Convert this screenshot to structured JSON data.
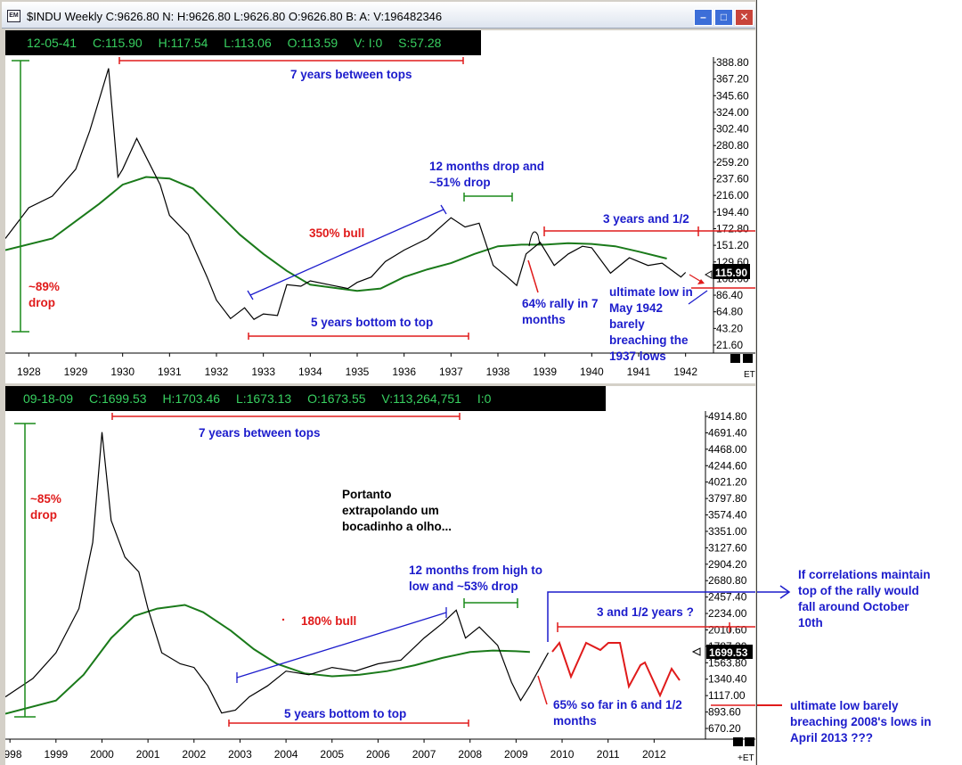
{
  "window": {
    "title": "$INDU Weekly C:9626.80 N: H:9626.80 L:9626.80 O:9626.80 B: A: V:196482346",
    "icon_label": "EM"
  },
  "top": {
    "info": {
      "date": "12-05-41",
      "close": "C:115.90",
      "high": "H:117.54",
      "low": "L:113.06",
      "open": "O:113.59",
      "vol": "V: I:0",
      "s": "S:57.28"
    },
    "price_ticks": [
      "388.80",
      "367.20",
      "345.60",
      "324.00",
      "302.40",
      "280.80",
      "259.20",
      "237.60",
      "216.00",
      "194.40",
      "172.80",
      "151.20",
      "129.60",
      "108.00",
      "86.40",
      "64.80",
      "43.20",
      "21.60"
    ],
    "years": [
      "1928",
      "1929",
      "1930",
      "1931",
      "1932",
      "1933",
      "1934",
      "1935",
      "1936",
      "1937",
      "1938",
      "1939",
      "1940",
      "1941",
      "1942"
    ],
    "last_price": "115.90",
    "et_label": "ET",
    "annotations": {
      "tops": "7 years between tops",
      "drop_12m_1": "12 months drop and",
      "drop_12m_2": "~51% drop",
      "three_years": "3 years and 1/2",
      "bull": "350% bull",
      "drop89_1": "~89%",
      "drop89_2": "drop",
      "bottom_top": "5 years bottom to top",
      "rally_1": "64% rally in 7",
      "rally_2": "months",
      "ult_1": "ultimate low in",
      "ult_2": "May 1942",
      "ult_3": "barely",
      "ult_4": "breaching the",
      "ult_5": "1937 lows"
    }
  },
  "bottom": {
    "info": {
      "date": "09-18-09",
      "close": "C:1699.53",
      "high": "H:1703.46",
      "low": "L:1673.13",
      "open": "O:1673.55",
      "vol": "V:113,264,751",
      "i": "I:0"
    },
    "price_ticks": [
      "4914.80",
      "4691.40",
      "4468.00",
      "4244.60",
      "4021.20",
      "3797.80",
      "3574.40",
      "3351.00",
      "3127.60",
      "2904.20",
      "2680.80",
      "2457.40",
      "2234.00",
      "2010.60",
      "1787.20",
      "1563.80",
      "1340.40",
      "1117.00",
      "893.60",
      "670.20"
    ],
    "years": [
      "1998",
      "1999",
      "2000",
      "2001",
      "2002",
      "2003",
      "2004",
      "2005",
      "2006",
      "2007",
      "2008",
      "2009",
      "2010",
      "2011",
      "2012"
    ],
    "last_price": "1699.53",
    "et_label": "+ET",
    "annotations": {
      "tops": "7 years between tops",
      "drop85_1": "~85%",
      "drop85_2": "drop",
      "portanto_1": "Portanto",
      "portanto_2": "extrapolando um",
      "portanto_3": "bocadinho a olho...",
      "high_low_1": "12 months from high to",
      "high_low_2": "low and ~53% drop",
      "bull": "180% bull",
      "three_half": "3 and 1/2 years  ?",
      "bottom_top": "5 years bottom to top",
      "sofar_1": "65% so far in 6 and 1/2",
      "sofar_2": "months"
    }
  },
  "side_notes": {
    "corr_1": "If correlations maintain",
    "corr_2": "top of the rally would",
    "corr_3": "fall around October",
    "corr_4": "10th",
    "ult_1": "ultimate low barely",
    "ult_2": "breaching 2008's lows in",
    "ult_3": "April 2013 ???"
  },
  "colors": {
    "price": "#000000",
    "ma": "#1a7a1a",
    "red": "#e01b1b",
    "blue": "#1c1ccc",
    "green_ann": "#1a8a1a",
    "info_text": "#38d060"
  },
  "chart_data": [
    {
      "type": "line",
      "title": "$INDU Weekly",
      "x_range": [
        1927.5,
        1942.5
      ],
      "ylim": [
        21.6,
        388.8
      ],
      "y_ticks": [
        388.8,
        367.2,
        345.6,
        324.0,
        302.4,
        280.8,
        259.2,
        237.6,
        216.0,
        194.4,
        172.8,
        151.2,
        129.6,
        108.0,
        86.4,
        64.8,
        43.2,
        21.6
      ],
      "series": [
        {
          "points": [
            [
              1927.5,
              160
            ],
            [
              1928.0,
              200
            ],
            [
              1928.5,
              215
            ],
            [
              1929.0,
              250
            ],
            [
              1929.3,
              300
            ],
            [
              1929.7,
              381
            ],
            [
              1929.9,
              240
            ],
            [
              1930.0,
              250
            ],
            [
              1930.3,
              290
            ],
            [
              1930.8,
              230
            ],
            [
              1931.0,
              190
            ],
            [
              1931.4,
              165
            ],
            [
              1931.8,
              110
            ],
            [
              1932.0,
              80
            ],
            [
              1932.3,
              56
            ],
            [
              1932.6,
              70
            ],
            [
              1932.8,
              55
            ],
            [
              1933.0,
              62
            ],
            [
              1933.3,
              60
            ],
            [
              1933.5,
              100
            ],
            [
              1933.8,
              98
            ],
            [
              1934.0,
              105
            ],
            [
              1934.4,
              100
            ],
            [
              1934.8,
              95
            ],
            [
              1935.0,
              103
            ],
            [
              1935.3,
              110
            ],
            [
              1935.6,
              130
            ],
            [
              1936.0,
              145
            ],
            [
              1936.5,
              160
            ],
            [
              1937.0,
              187
            ],
            [
              1937.3,
              175
            ],
            [
              1937.6,
              180
            ],
            [
              1937.9,
              125
            ],
            [
              1938.2,
              110
            ],
            [
              1938.4,
              99
            ],
            [
              1938.6,
              140
            ],
            [
              1938.9,
              155
            ],
            [
              1939.2,
              125
            ],
            [
              1939.5,
              140
            ],
            [
              1939.8,
              150
            ],
            [
              1940.0,
              148
            ],
            [
              1940.4,
              115
            ],
            [
              1940.8,
              135
            ],
            [
              1941.2,
              125
            ],
            [
              1941.5,
              128
            ],
            [
              1941.9,
              110
            ],
            [
              1942.0,
              116
            ]
          ]
        },
        {
          "points": [
            [
              1927.5,
              145
            ],
            [
              1928.5,
              160
            ],
            [
              1929.5,
              205
            ],
            [
              1930.0,
              230
            ],
            [
              1930.5,
              240
            ],
            [
              1931.0,
              238
            ],
            [
              1931.5,
              225
            ],
            [
              1932.0,
              195
            ],
            [
              1932.5,
              165
            ],
            [
              1933.0,
              140
            ],
            [
              1933.5,
              118
            ],
            [
              1934.0,
              100
            ],
            [
              1935.0,
              92
            ],
            [
              1935.5,
              95
            ],
            [
              1936.0,
              110
            ],
            [
              1936.5,
              120
            ],
            [
              1937.0,
              128
            ],
            [
              1937.5,
              140
            ],
            [
              1938.0,
              150
            ],
            [
              1938.5,
              152
            ],
            [
              1939.0,
              152
            ],
            [
              1939.5,
              154
            ],
            [
              1940.0,
              153
            ],
            [
              1940.5,
              150
            ],
            [
              1941.0,
              143
            ],
            [
              1941.6,
              134
            ]
          ]
        }
      ]
    },
    {
      "type": "line",
      "title": "$INDU Weekly",
      "x_range": [
        1997.9,
        2013.0
      ],
      "ylim": [
        670.2,
        4914.8
      ],
      "y_ticks": [
        4914.8,
        4691.4,
        4468.0,
        4244.6,
        4021.2,
        3797.8,
        3574.4,
        3351.0,
        3127.6,
        2904.2,
        2680.8,
        2457.4,
        2234.0,
        2010.6,
        1787.2,
        1563.8,
        1340.4,
        1117.0,
        893.6,
        670.2
      ],
      "series": [
        {
          "points": [
            [
              1997.9,
              1100
            ],
            [
              1998.5,
              1350
            ],
            [
              1999.0,
              1700
            ],
            [
              1999.5,
              2300
            ],
            [
              1999.8,
              3200
            ],
            [
              2000.0,
              4700
            ],
            [
              2000.2,
              3500
            ],
            [
              2000.5,
              3000
            ],
            [
              2000.8,
              2800
            ],
            [
              2001.0,
              2300
            ],
            [
              2001.3,
              1700
            ],
            [
              2001.7,
              1550
            ],
            [
              2002.0,
              1500
            ],
            [
              2002.3,
              1250
            ],
            [
              2002.6,
              880
            ],
            [
              2002.9,
              920
            ],
            [
              2003.2,
              1100
            ],
            [
              2003.6,
              1250
            ],
            [
              2004.0,
              1450
            ],
            [
              2004.5,
              1400
            ],
            [
              2005.0,
              1500
            ],
            [
              2005.5,
              1450
            ],
            [
              2006.0,
              1550
            ],
            [
              2006.5,
              1600
            ],
            [
              2007.0,
              1900
            ],
            [
              2007.4,
              2100
            ],
            [
              2007.7,
              2280
            ],
            [
              2007.9,
              1900
            ],
            [
              2008.2,
              2050
            ],
            [
              2008.6,
              1800
            ],
            [
              2008.9,
              1300
            ],
            [
              2009.1,
              1050
            ],
            [
              2009.3,
              1250
            ],
            [
              2009.7,
              1700
            ]
          ]
        },
        {
          "points": [
            [
              1997.9,
              870
            ],
            [
              1999.0,
              1050
            ],
            [
              1999.6,
              1400
            ],
            [
              2000.2,
              1900
            ],
            [
              2000.7,
              2200
            ],
            [
              2001.2,
              2300
            ],
            [
              2001.8,
              2350
            ],
            [
              2002.2,
              2250
            ],
            [
              2002.8,
              2000
            ],
            [
              2003.3,
              1750
            ],
            [
              2003.8,
              1550
            ],
            [
              2004.4,
              1420
            ],
            [
              2005.0,
              1380
            ],
            [
              2005.6,
              1400
            ],
            [
              2006.2,
              1450
            ],
            [
              2006.8,
              1530
            ],
            [
              2007.4,
              1630
            ],
            [
              2008.0,
              1710
            ],
            [
              2008.5,
              1730
            ],
            [
              2009.0,
              1720
            ],
            [
              2009.3,
              1710
            ]
          ]
        }
      ]
    }
  ]
}
